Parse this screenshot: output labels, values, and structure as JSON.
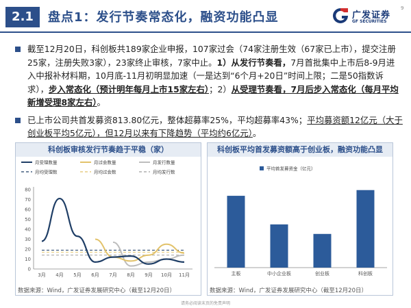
{
  "header": {
    "section": "2.1",
    "title": "盘点1：发行节奏常态化，融资功能凸显",
    "logo_cn": "广发证券",
    "logo_en": "GF SECURITIES",
    "page": "9"
  },
  "bullets": [
    {
      "segments": [
        {
          "t": "截至12月20日，科创板共189家企业申报，107家过会（74家注册生效（67家已上市），提交注册25家，注册失败3家），23家终止审核，7家中止。"
        },
        {
          "t": "1）从发行节奏看，",
          "b": true
        },
        {
          "t": "7月首批集中上市后8-9月进入中报补材料期，10月底-11月初明显加速（一是达到“6个月+20日”时间上限；二是50指数诉求），"
        },
        {
          "t": "步入常态化（预计明年每月上市15家左右）",
          "b": true,
          "u": true
        },
        {
          "t": "；2）"
        },
        {
          "t": "从受理节奏看，7月后步入常态化（每月平均新增受理8家左右）",
          "b": true,
          "u": true
        },
        {
          "t": "。"
        }
      ]
    },
    {
      "segments": [
        {
          "t": "已上市公司共首发募资813.80亿元，整体超募率25%，平均超募率43%；"
        },
        {
          "t": "平均募资额12亿元（大于创业板平均5亿元），但12月以来有下降趋势（平均约6亿元）",
          "u": true
        },
        {
          "t": "。"
        }
      ]
    }
  ],
  "left_panel": {
    "title": "科创板审核发行节奏趋于平稳（家）",
    "source": "数据来源：Wind，广发证券发展研究中心（截至12月20日）"
  },
  "right_panel": {
    "title": "科创板平均首发募资额高于创业板，融资功能凸显",
    "source": "数据来源：Wind，广发证券发展研究中心（截至12月20日）"
  },
  "footer_note": "请务必阅读末页的免责声明",
  "chart_data": [
    {
      "type": "line",
      "categories": [
        "3月",
        "4月",
        "5月",
        "6月",
        "7月",
        "8月",
        "9月",
        "10月",
        "11月"
      ],
      "ylim": [
        0,
        80
      ],
      "yticks": [
        0,
        10,
        20,
        30,
        40,
        50,
        60,
        70,
        80
      ],
      "series": [
        {
          "name": "月受理数量",
          "color": "#1f3e66",
          "dash": "",
          "width": 2.2,
          "values": [
            28,
            71,
            33,
            7,
            12,
            13,
            5,
            10,
            7
          ]
        },
        {
          "name": "月过会数量",
          "color": "#e2c26a",
          "dash": "",
          "width": 2.0,
          "values": [
            null,
            null,
            null,
            30,
            12,
            8,
            14,
            25,
            16
          ]
        },
        {
          "name": "月发行数量",
          "color": "#bdbdbd",
          "dash": "",
          "width": 2.0,
          "values": [
            null,
            null,
            null,
            null,
            27,
            3,
            7,
            10,
            14
          ]
        },
        {
          "name": "月均受理数",
          "color": "#1f3e66",
          "dash": "4,3",
          "width": 1.0,
          "values": [
            19,
            19,
            19,
            19,
            19,
            19,
            19,
            19,
            19
          ]
        },
        {
          "name": "月均过会数",
          "color": "#e2c26a",
          "dash": "4,3",
          "width": 1.0,
          "values": [
            17,
            17,
            17,
            17,
            17,
            17,
            17,
            17,
            17
          ]
        },
        {
          "name": "月均发行数",
          "color": "#9e9e9e",
          "dash": "4,3",
          "width": 1.0,
          "values": [
            14,
            14,
            14,
            14,
            14,
            14,
            14,
            14,
            14
          ]
        }
      ],
      "grid": false,
      "legend": "top"
    },
    {
      "type": "bar",
      "categories": [
        "主板",
        "中小企业板",
        "创业板",
        "科创板"
      ],
      "values": [
        11.3,
        6.8,
        5.3,
        12.2
      ],
      "series_name": "平均首发募资金（亿元）",
      "color": "#2c5b9a",
      "ylim": [
        0,
        14
      ],
      "grid": false,
      "legend": "top-left"
    }
  ]
}
